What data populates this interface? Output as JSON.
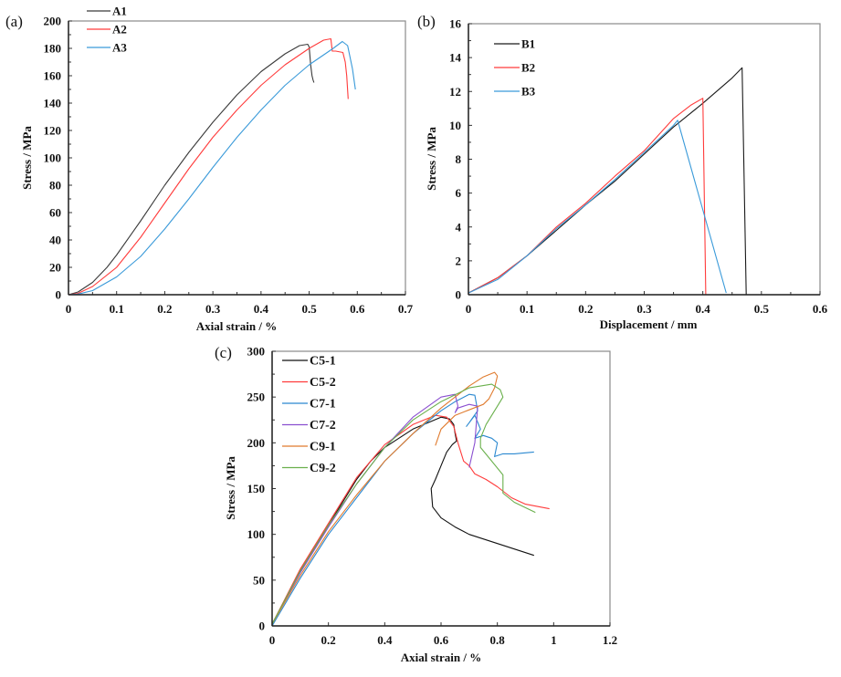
{
  "chart_data": [
    {
      "type": "line",
      "panel_label": "(a)",
      "xlabel": "Axial strain / %",
      "ylabel": "Stress / MPa",
      "xlim": [
        0,
        0.7
      ],
      "ylim": [
        0,
        200
      ],
      "xticks": [
        "0",
        "0.1",
        "0.2",
        "0.3",
        "0.4",
        "0.5",
        "0.6",
        "0.7"
      ],
      "xtick_values": [
        0,
        0.1,
        0.2,
        0.3,
        0.4,
        0.5,
        0.6,
        0.7
      ],
      "yticks": [
        "0",
        "20",
        "40",
        "60",
        "80",
        "100",
        "120",
        "140",
        "160",
        "180",
        "200"
      ],
      "ytick_values": [
        0,
        20,
        40,
        60,
        80,
        100,
        120,
        140,
        160,
        180,
        200
      ],
      "legend_position": "top-left",
      "series": [
        {
          "name": "A1",
          "color": "#3a3a3a",
          "x": [
            0,
            0.02,
            0.05,
            0.08,
            0.1,
            0.15,
            0.2,
            0.25,
            0.3,
            0.35,
            0.4,
            0.45,
            0.48,
            0.497,
            0.5,
            0.503,
            0.506,
            0.508,
            0.51
          ],
          "y": [
            0,
            2,
            9,
            20,
            29,
            54,
            80,
            104,
            126,
            146,
            163,
            176,
            182,
            183,
            181,
            168,
            160,
            157,
            155
          ]
        },
        {
          "name": "A2",
          "color": "#ff3b3b",
          "x": [
            0,
            0.02,
            0.05,
            0.1,
            0.15,
            0.2,
            0.25,
            0.3,
            0.35,
            0.4,
            0.45,
            0.5,
            0.53,
            0.545,
            0.548,
            0.555,
            0.57,
            0.575,
            0.578,
            0.581
          ],
          "y": [
            0,
            1,
            6,
            20,
            42,
            67,
            92,
            115,
            135,
            153,
            168,
            180,
            186,
            187,
            178,
            178,
            177,
            170,
            160,
            143
          ]
        },
        {
          "name": "A3",
          "color": "#3a9ad9",
          "x": [
            0,
            0.02,
            0.05,
            0.1,
            0.15,
            0.2,
            0.25,
            0.3,
            0.35,
            0.4,
            0.45,
            0.5,
            0.55,
            0.569,
            0.58,
            0.584,
            0.59,
            0.596
          ],
          "y": [
            0,
            0.5,
            3,
            13,
            28,
            48,
            70,
            93,
            115,
            135,
            153,
            168,
            180,
            185,
            182,
            175,
            165,
            150
          ]
        }
      ]
    },
    {
      "type": "line",
      "panel_label": "(b)",
      "xlabel": "Displacement / mm",
      "ylabel": "Stress / MPa",
      "xlim": [
        0,
        0.6
      ],
      "ylim": [
        0,
        16
      ],
      "xticks": [
        "0",
        "0.1",
        "0.2",
        "0.3",
        "0.4",
        "0.5",
        "0.6"
      ],
      "xtick_values": [
        0,
        0.1,
        0.2,
        0.3,
        0.4,
        0.5,
        0.6
      ],
      "yticks": [
        "0",
        "2",
        "4",
        "6",
        "8",
        "10",
        "12",
        "14",
        "16"
      ],
      "ytick_values": [
        0,
        2,
        4,
        6,
        8,
        10,
        12,
        14,
        16
      ],
      "legend_position": "top-left",
      "series": [
        {
          "name": "B1",
          "color": "#1a1a1a",
          "x": [
            0,
            0.05,
            0.1,
            0.15,
            0.2,
            0.25,
            0.3,
            0.35,
            0.4,
            0.45,
            0.467,
            0.474
          ],
          "y": [
            0.1,
            1.0,
            2.3,
            3.8,
            5.3,
            6.7,
            8.3,
            9.9,
            11.3,
            12.8,
            13.4,
            0
          ]
        },
        {
          "name": "B2",
          "color": "#ff3b3b",
          "x": [
            0,
            0.05,
            0.1,
            0.15,
            0.2,
            0.25,
            0.3,
            0.35,
            0.38,
            0.4,
            0.405
          ],
          "y": [
            0.1,
            1.0,
            2.3,
            4.0,
            5.4,
            7.0,
            8.5,
            10.4,
            11.2,
            11.6,
            0
          ]
        },
        {
          "name": "B3",
          "color": "#3a9ad9",
          "x": [
            0,
            0.05,
            0.1,
            0.15,
            0.2,
            0.25,
            0.3,
            0.35,
            0.357,
            0.44
          ],
          "y": [
            0.1,
            0.9,
            2.3,
            3.9,
            5.3,
            6.8,
            8.4,
            10.0,
            10.3,
            0.1
          ]
        }
      ]
    },
    {
      "type": "line",
      "panel_label": "(c)",
      "xlabel": "Axial strain / %",
      "ylabel": "Stress / MPa",
      "xlim": [
        0,
        1.2
      ],
      "ylim": [
        0,
        300
      ],
      "xticks": [
        "0",
        "0.2",
        "0.4",
        "0.6",
        "0.8",
        "1",
        "1.2"
      ],
      "xtick_values": [
        0,
        0.2,
        0.4,
        0.6,
        0.8,
        1.0,
        1.2
      ],
      "yticks": [
        "0",
        "50",
        "100",
        "150",
        "200",
        "250",
        "300"
      ],
      "ytick_values": [
        0,
        50,
        100,
        150,
        200,
        250,
        300
      ],
      "legend_position": "top-left",
      "series": [
        {
          "name": "C5-1",
          "color": "#111111",
          "x": [
            0,
            0.1,
            0.2,
            0.3,
            0.35,
            0.4,
            0.5,
            0.6,
            0.63,
            0.645,
            0.65,
            0.655,
            0.64,
            0.62,
            0.6,
            0.58,
            0.565,
            0.57,
            0.6,
            0.65,
            0.7,
            0.8,
            0.85,
            0.93
          ],
          "y": [
            2,
            60,
            110,
            160,
            180,
            195,
            215,
            228,
            226,
            220,
            210,
            202,
            198,
            190,
            175,
            160,
            150,
            130,
            118,
            108,
            100,
            90,
            85,
            77
          ]
        },
        {
          "name": "C5-2",
          "color": "#ff3b3b",
          "x": [
            0,
            0.1,
            0.2,
            0.3,
            0.4,
            0.5,
            0.58,
            0.62,
            0.645,
            0.66,
            0.68,
            0.7,
            0.72,
            0.76,
            0.8,
            0.85,
            0.9,
            0.985
          ],
          "y": [
            2,
            62,
            112,
            162,
            198,
            220,
            230,
            228,
            218,
            200,
            180,
            175,
            166,
            160,
            152,
            140,
            133,
            128
          ]
        },
        {
          "name": "C7-1",
          "color": "#2a88d0",
          "x": [
            0,
            0.1,
            0.2,
            0.3,
            0.4,
            0.5,
            0.6,
            0.65,
            0.7,
            0.72,
            0.73,
            0.7,
            0.69,
            0.72,
            0.74,
            0.72,
            0.75,
            0.78,
            0.8,
            0.79,
            0.82,
            0.86,
            0.93
          ],
          "y": [
            0,
            52,
            100,
            140,
            180,
            210,
            235,
            245,
            253,
            252,
            235,
            222,
            218,
            230,
            215,
            205,
            208,
            205,
            200,
            185,
            188,
            188,
            190
          ]
        },
        {
          "name": "C7-2",
          "color": "#8a4fd0",
          "x": [
            0,
            0.1,
            0.2,
            0.3,
            0.4,
            0.5,
            0.6,
            0.65,
            0.66,
            0.65,
            0.66,
            0.7,
            0.73,
            0.72,
            0.7
          ],
          "y": [
            2,
            58,
            108,
            155,
            195,
            228,
            250,
            253,
            240,
            233,
            238,
            242,
            240,
            200,
            173
          ]
        },
        {
          "name": "C9-1",
          "color": "#e07b2e",
          "x": [
            0,
            0.1,
            0.2,
            0.3,
            0.4,
            0.5,
            0.6,
            0.7,
            0.75,
            0.79,
            0.8,
            0.79,
            0.77,
            0.75,
            0.7,
            0.65,
            0.6,
            0.58
          ],
          "y": [
            2,
            55,
            103,
            143,
            180,
            210,
            238,
            262,
            272,
            277,
            273,
            260,
            248,
            242,
            236,
            230,
            215,
            197
          ]
        },
        {
          "name": "C9-2",
          "color": "#6ab04c",
          "x": [
            0,
            0.1,
            0.2,
            0.3,
            0.4,
            0.5,
            0.6,
            0.7,
            0.78,
            0.81,
            0.82,
            0.8,
            0.76,
            0.74,
            0.74,
            0.78,
            0.82,
            0.82,
            0.86,
            0.935
          ],
          "y": [
            2,
            60,
            110,
            155,
            195,
            225,
            245,
            260,
            264,
            258,
            250,
            240,
            220,
            205,
            195,
            180,
            165,
            145,
            135,
            124
          ]
        }
      ]
    }
  ]
}
